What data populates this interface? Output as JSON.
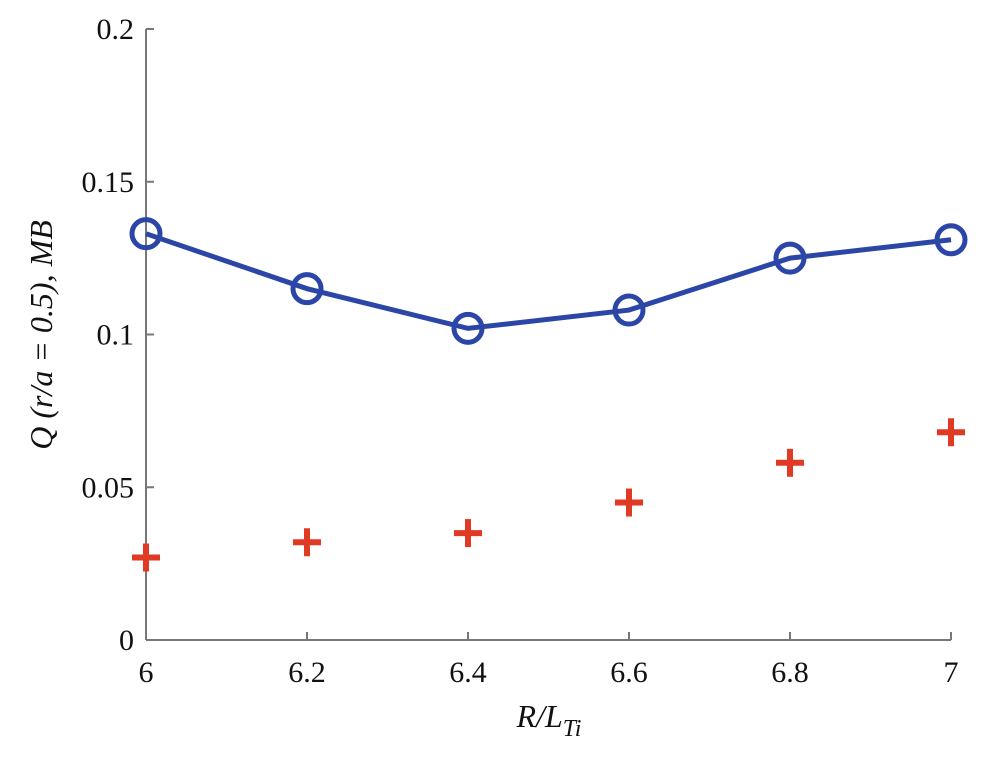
{
  "chart_data": {
    "type": "line",
    "title": "",
    "xlabel": {
      "main": "R/L",
      "sub": "Ti"
    },
    "ylabel": "Q (r/a = 0.5), MB",
    "xlim": [
      6,
      7
    ],
    "ylim": [
      0,
      0.2
    ],
    "xticks": [
      "6",
      "6.2",
      "6.4",
      "6.6",
      "6.8",
      "7"
    ],
    "xtick_values": [
      6,
      6.2,
      6.4,
      6.6,
      6.8,
      7
    ],
    "yticks": [
      "0",
      "0.05",
      "0.1",
      "0.15",
      "0.2"
    ],
    "ytick_values": [
      0,
      0.05,
      0.1,
      0.15,
      0.2
    ],
    "grid": false,
    "legend": "none",
    "x": [
      6,
      6.2,
      6.4,
      6.6,
      6.8,
      7
    ],
    "series": [
      {
        "style": "line-circle",
        "color": "#2b46a6",
        "values": [
          0.133,
          0.115,
          0.102,
          0.108,
          0.125,
          0.131
        ]
      },
      {
        "style": "plus",
        "color": "#e03a25",
        "values": [
          0.027,
          0.032,
          0.035,
          0.045,
          0.058,
          0.068
        ]
      }
    ]
  }
}
